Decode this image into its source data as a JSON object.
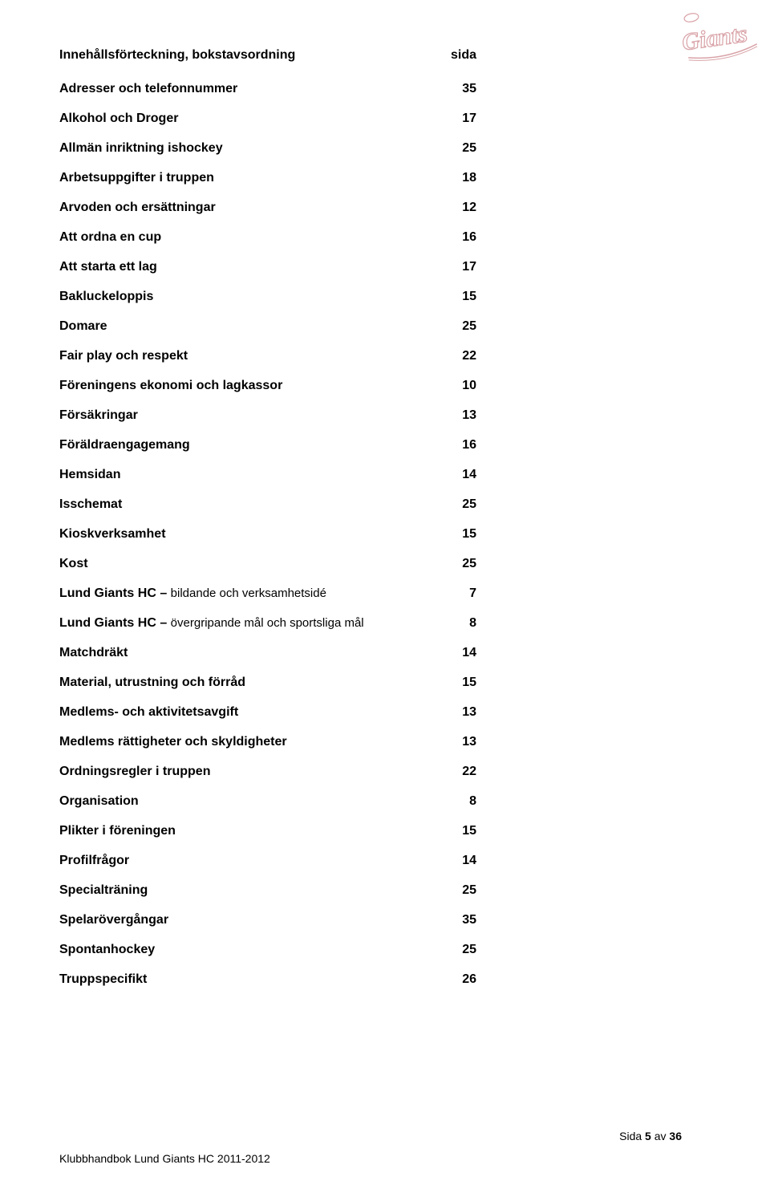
{
  "logo": {
    "text": "Giants",
    "outline_color": "#d9a3a8",
    "fill_color": "#ffffff"
  },
  "heading": {
    "label": "Innehållsförteckning,  bokstavsordning",
    "page_col": "sida"
  },
  "toc": [
    {
      "label": "Adresser och telefonnummer",
      "page": "35"
    },
    {
      "label": "Alkohol och Droger",
      "page": "17"
    },
    {
      "label": "Allmän inriktning ishockey",
      "page": "25"
    },
    {
      "label": "Arbetsuppgifter i truppen",
      "page": "18"
    },
    {
      "label": "Arvoden och ersättningar",
      "page": "12"
    },
    {
      "label": "Att ordna en cup",
      "page": "16"
    },
    {
      "label": "Att starta ett lag",
      "page": "17"
    },
    {
      "label": "Bakluckeloppis",
      "page": "15"
    },
    {
      "label": "Domare",
      "page": "25"
    },
    {
      "label": "Fair play och respekt",
      "page": "22"
    },
    {
      "label": "Föreningens ekonomi och lagkassor",
      "page": "10"
    },
    {
      "label": "Försäkringar",
      "page": "13"
    },
    {
      "label": "Föräldraengagemang",
      "page": "16"
    },
    {
      "label": "Hemsidan",
      "page": "14"
    },
    {
      "label": "Isschemat",
      "page": "25"
    },
    {
      "label": "Kioskverksamhet",
      "page": "15"
    },
    {
      "label": "Kost",
      "page": "25"
    },
    {
      "label_prefix": "Lund Giants HC – ",
      "label_light": "bildande och verksamhetsidé",
      "page": "7"
    },
    {
      "label_prefix": "Lund Giants HC – ",
      "label_light": "övergripande mål och sportsliga mål",
      "page": "8"
    },
    {
      "label": "Matchdräkt",
      "page": "14"
    },
    {
      "label": "Material, utrustning och förråd",
      "page": "15"
    },
    {
      "label": "Medlems- och aktivitetsavgift",
      "page": "13"
    },
    {
      "label": "Medlems rättigheter och skyldigheter",
      "page": "13"
    },
    {
      "label": "Ordningsregler i truppen",
      "page": "22"
    },
    {
      "label": "Organisation",
      "page": "8"
    },
    {
      "label": "Plikter i föreningen",
      "page": "15"
    },
    {
      "label": "Profilfrågor",
      "page": "14"
    },
    {
      "label": "Specialträning",
      "page": "25"
    },
    {
      "label": "Spelarövergångar",
      "page": "35"
    },
    {
      "label": "Spontanhockey",
      "page": "25"
    },
    {
      "label": "Truppspecifikt",
      "page": "26"
    }
  ],
  "footer": {
    "left": "Klubbhandbok Lund Giants HC 2011-2012",
    "right_prefix": "Sida ",
    "right_bold": "5",
    "right_suffix": " av ",
    "right_total": "36"
  },
  "style": {
    "text_color": "#000000",
    "background_color": "#ffffff",
    "font_size_body": 16,
    "font_size_footer": 14,
    "content_width": 520
  }
}
